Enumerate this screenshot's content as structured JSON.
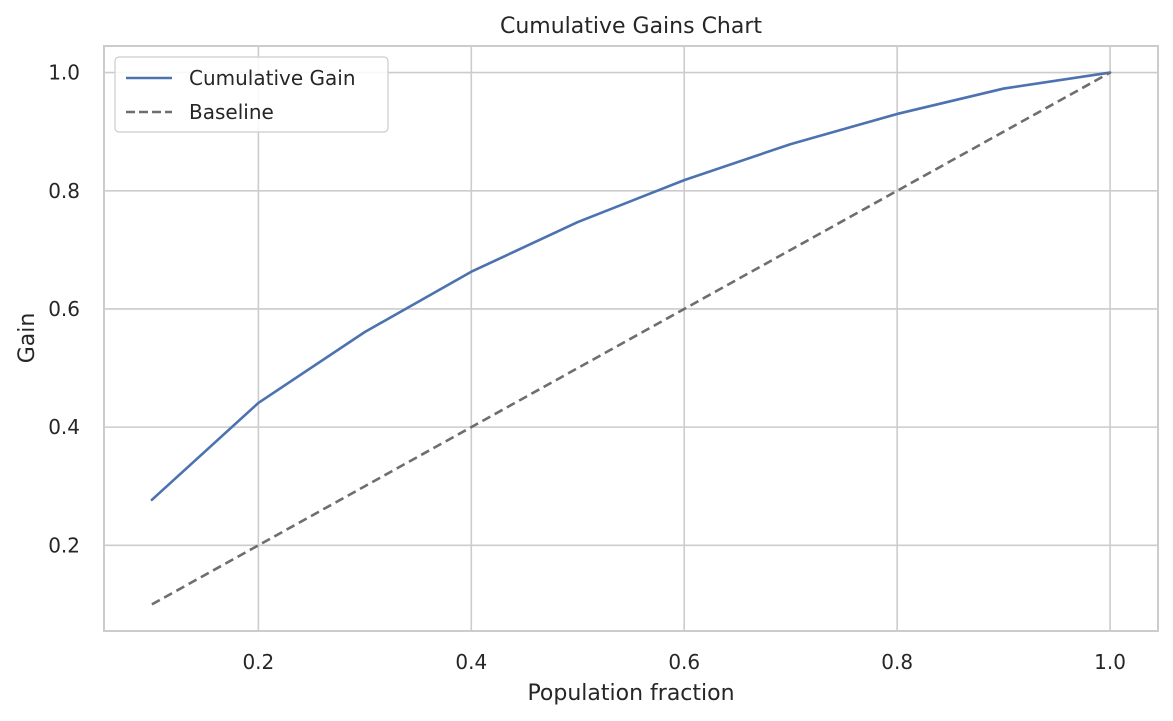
{
  "chart_data": {
    "type": "line",
    "title": "Cumulative Gains Chart",
    "xlabel": "Population fraction",
    "ylabel": "Gain",
    "xlim": [
      0.055,
      1.045
    ],
    "ylim": [
      0.055,
      1.045
    ],
    "xticks": [
      0.2,
      0.4,
      0.6,
      0.8,
      1.0
    ],
    "yticks": [
      0.2,
      0.4,
      0.6,
      0.8,
      1.0
    ],
    "xtick_labels": [
      "0.2",
      "0.4",
      "0.6",
      "0.8",
      "1.0"
    ],
    "ytick_labels": [
      "0.2",
      "0.4",
      "0.6",
      "0.8",
      "1.0"
    ],
    "grid": true,
    "legend": "top-left",
    "x": [
      0.1,
      0.2,
      0.3,
      0.4,
      0.5,
      0.6,
      0.7,
      0.8,
      0.9,
      1.0
    ],
    "series": [
      {
        "name": "Cumulative Gain",
        "values": [
          0.277,
          0.441,
          0.561,
          0.663,
          0.747,
          0.818,
          0.879,
          0.93,
          0.973,
          1.0
        ],
        "color": "#4c72b0",
        "style": "solid"
      },
      {
        "name": "Baseline",
        "values": [
          0.1,
          0.2,
          0.3,
          0.4,
          0.5,
          0.6,
          0.7,
          0.8,
          0.9,
          1.0
        ],
        "color": "#6e6e6e",
        "style": "dashed"
      }
    ]
  }
}
